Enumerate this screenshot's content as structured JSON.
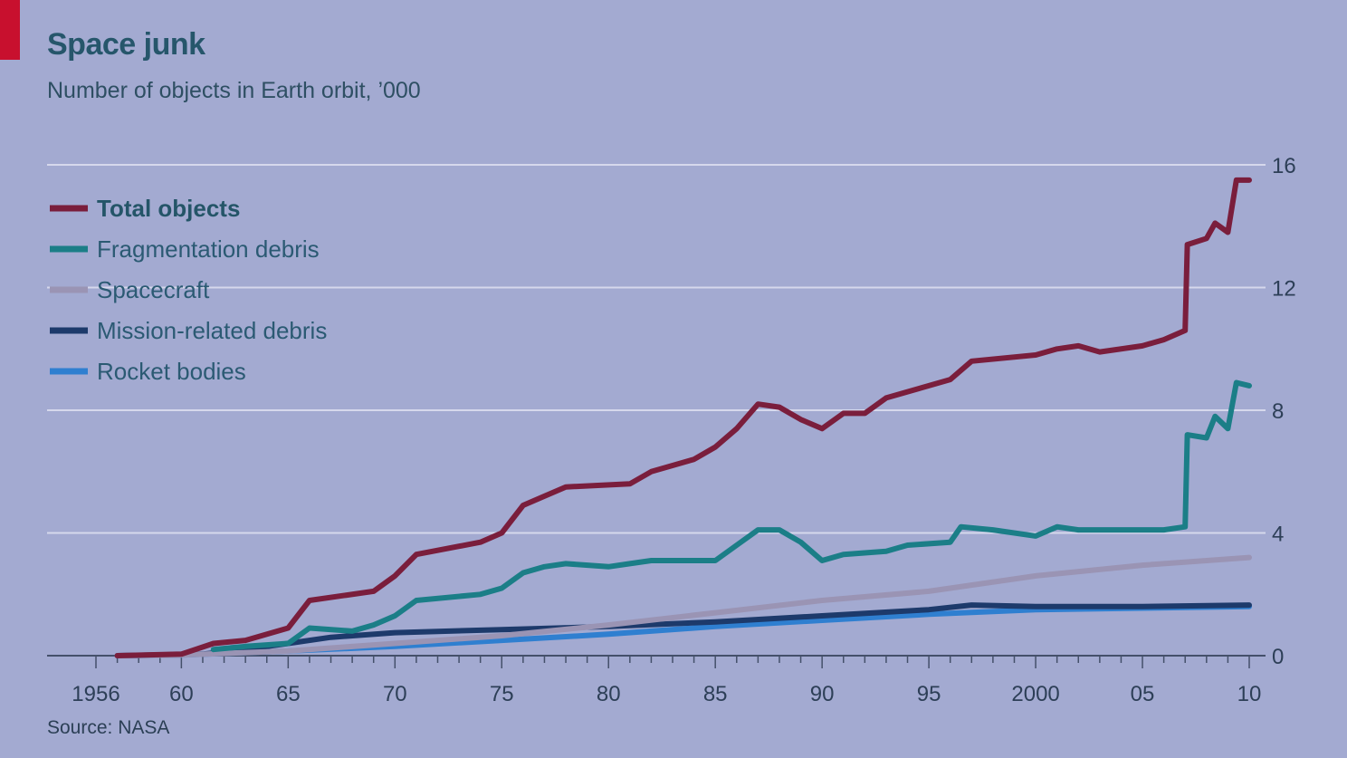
{
  "chart_data": {
    "type": "line",
    "title": "Space junk",
    "subtitle": "Number of objects in Earth orbit, ’000",
    "source": "Source: NASA",
    "xlabel": "",
    "ylabel": "",
    "xlim": [
      1956,
      2010
    ],
    "ylim": [
      0,
      16
    ],
    "yticks": [
      0,
      4,
      8,
      12,
      16
    ],
    "ytick_labels": [
      "0",
      "4",
      "8",
      "12",
      "16"
    ],
    "xticks": [
      1956,
      1960,
      1965,
      1970,
      1975,
      1980,
      1985,
      1990,
      1995,
      2000,
      2005,
      2010
    ],
    "xtick_labels": [
      "1956",
      "60",
      "65",
      "70",
      "75",
      "80",
      "85",
      "90",
      "95",
      "2000",
      "05",
      "10"
    ],
    "grid": true,
    "legend_position": "top-left",
    "series": [
      {
        "name": "Total objects",
        "color": "#7a1e3c",
        "bold": true,
        "points": [
          [
            1957,
            0
          ],
          [
            1960,
            0.05
          ],
          [
            1961.5,
            0.4
          ],
          [
            1963,
            0.5
          ],
          [
            1965,
            0.9
          ],
          [
            1966,
            1.8
          ],
          [
            1969,
            2.1
          ],
          [
            1970,
            2.6
          ],
          [
            1971,
            3.3
          ],
          [
            1974,
            3.7
          ],
          [
            1975,
            4.0
          ],
          [
            1976,
            4.9
          ],
          [
            1977,
            5.2
          ],
          [
            1978,
            5.5
          ],
          [
            1981,
            5.6
          ],
          [
            1982,
            6.0
          ],
          [
            1984,
            6.4
          ],
          [
            1985,
            6.8
          ],
          [
            1986,
            7.4
          ],
          [
            1987,
            8.2
          ],
          [
            1988,
            8.1
          ],
          [
            1989,
            7.7
          ],
          [
            1990,
            7.4
          ],
          [
            1991,
            7.9
          ],
          [
            1992,
            7.9
          ],
          [
            1993,
            8.4
          ],
          [
            1995,
            8.8
          ],
          [
            1996,
            9.0
          ],
          [
            1997,
            9.6
          ],
          [
            2000,
            9.8
          ],
          [
            2001,
            10.0
          ],
          [
            2002,
            10.1
          ],
          [
            2003,
            9.9
          ],
          [
            2005,
            10.1
          ],
          [
            2006,
            10.3
          ],
          [
            2007,
            10.6
          ],
          [
            2007.1,
            13.4
          ],
          [
            2008,
            13.6
          ],
          [
            2008.4,
            14.1
          ],
          [
            2009,
            13.8
          ],
          [
            2009.4,
            15.5
          ],
          [
            2010,
            15.5
          ]
        ]
      },
      {
        "name": "Fragmentation debris",
        "color": "#1b7e87",
        "bold": false,
        "points": [
          [
            1961.5,
            0.2
          ],
          [
            1963,
            0.3
          ],
          [
            1965,
            0.4
          ],
          [
            1966,
            0.9
          ],
          [
            1968,
            0.8
          ],
          [
            1969,
            1.0
          ],
          [
            1970,
            1.3
          ],
          [
            1971,
            1.8
          ],
          [
            1974,
            2.0
          ],
          [
            1975,
            2.2
          ],
          [
            1976,
            2.7
          ],
          [
            1977,
            2.9
          ],
          [
            1978,
            3.0
          ],
          [
            1980,
            2.9
          ],
          [
            1981,
            3.0
          ],
          [
            1982,
            3.1
          ],
          [
            1985,
            3.1
          ],
          [
            1986,
            3.6
          ],
          [
            1987,
            4.1
          ],
          [
            1988,
            4.1
          ],
          [
            1989,
            3.7
          ],
          [
            1990,
            3.1
          ],
          [
            1991,
            3.3
          ],
          [
            1993,
            3.4
          ],
          [
            1994,
            3.6
          ],
          [
            1996,
            3.7
          ],
          [
            1996.5,
            4.2
          ],
          [
            1998,
            4.1
          ],
          [
            2000,
            3.9
          ],
          [
            2001,
            4.2
          ],
          [
            2002,
            4.1
          ],
          [
            2003,
            4.1
          ],
          [
            2006,
            4.1
          ],
          [
            2007,
            4.2
          ],
          [
            2007.1,
            7.2
          ],
          [
            2008,
            7.1
          ],
          [
            2008.4,
            7.8
          ],
          [
            2009,
            7.4
          ],
          [
            2009.4,
            8.9
          ],
          [
            2010,
            8.8
          ]
        ]
      },
      {
        "name": "Spacecraft",
        "color": "#9a94b4",
        "bold": false,
        "points": [
          [
            1957,
            0
          ],
          [
            1960,
            0.02
          ],
          [
            1965,
            0.15
          ],
          [
            1970,
            0.4
          ],
          [
            1975,
            0.65
          ],
          [
            1980,
            1.0
          ],
          [
            1985,
            1.4
          ],
          [
            1990,
            1.8
          ],
          [
            1995,
            2.1
          ],
          [
            2000,
            2.6
          ],
          [
            2005,
            2.95
          ],
          [
            2010,
            3.2
          ]
        ]
      },
      {
        "name": "Mission-related debris",
        "color": "#1d3a6b",
        "bold": false,
        "points": [
          [
            1957,
            0
          ],
          [
            1961,
            0.05
          ],
          [
            1963,
            0.2
          ],
          [
            1965,
            0.4
          ],
          [
            1967,
            0.6
          ],
          [
            1970,
            0.75
          ],
          [
            1975,
            0.85
          ],
          [
            1980,
            0.95
          ],
          [
            1985,
            1.1
          ],
          [
            1990,
            1.3
          ],
          [
            1995,
            1.5
          ],
          [
            1997,
            1.65
          ],
          [
            2000,
            1.6
          ],
          [
            2005,
            1.6
          ],
          [
            2010,
            1.65
          ]
        ]
      },
      {
        "name": "Rocket bodies",
        "color": "#2f7fd0",
        "bold": false,
        "points": [
          [
            1957,
            0
          ],
          [
            1960,
            0.02
          ],
          [
            1965,
            0.15
          ],
          [
            1970,
            0.3
          ],
          [
            1975,
            0.5
          ],
          [
            1980,
            0.7
          ],
          [
            1985,
            0.95
          ],
          [
            1990,
            1.15
          ],
          [
            1995,
            1.35
          ],
          [
            2000,
            1.5
          ],
          [
            2005,
            1.55
          ],
          [
            2010,
            1.6
          ]
        ]
      }
    ]
  }
}
